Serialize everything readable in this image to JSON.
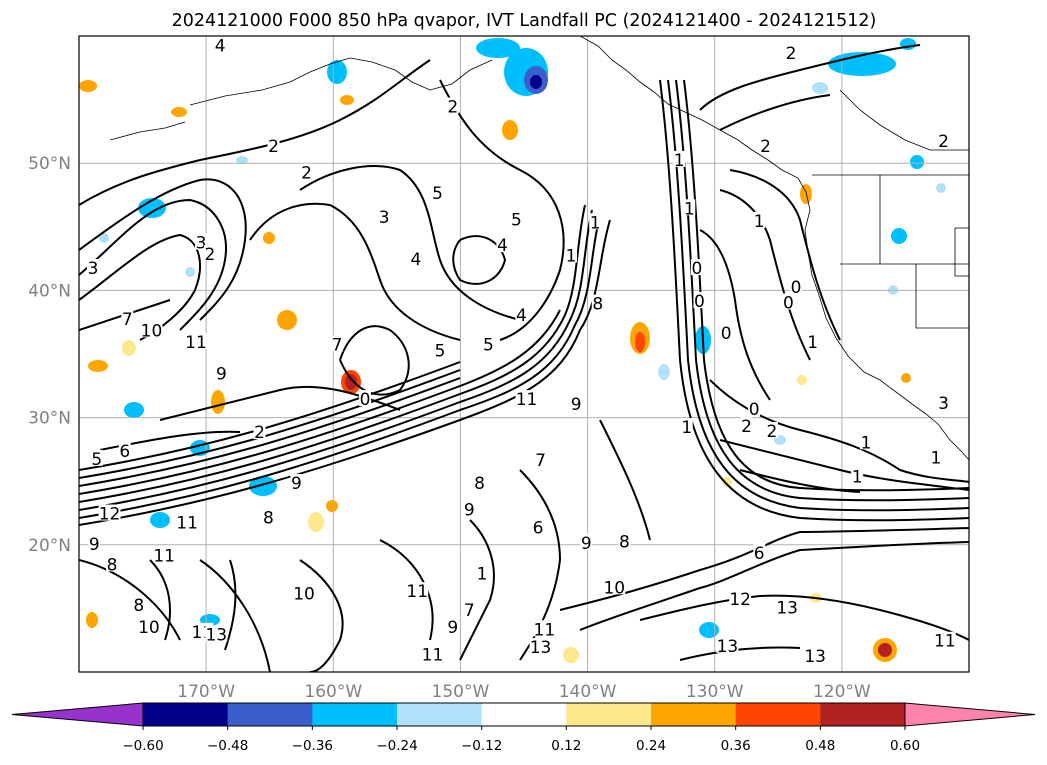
{
  "chart_data": {
    "type": "heatmap",
    "title": "2024121000 F000 850 hPa qvapor, IVT Landfall PC (2024121400 - 2024121512)",
    "xlabel": "",
    "ylabel": "",
    "xlim": [
      -180,
      -110
    ],
    "ylim": [
      10,
      60
    ],
    "x_ticks": [
      -170,
      -160,
      -150,
      -140,
      -130,
      -120
    ],
    "x_tick_labels": [
      "170°W",
      "160°W",
      "150°W",
      "140°W",
      "130°W",
      "120°W"
    ],
    "y_ticks": [
      20,
      30,
      40,
      50
    ],
    "y_tick_labels": [
      "20°N",
      "30°N",
      "40°N",
      "50°N"
    ],
    "grid": true,
    "shading_variable": "IVT Landfall PC",
    "contour_variable": "850 hPa qvapor",
    "colorbar": {
      "orientation": "horizontal",
      "extend": "both",
      "boundaries": [
        -0.6,
        -0.48,
        -0.36,
        -0.24,
        -0.12,
        0.12,
        0.24,
        0.36,
        0.48,
        0.6
      ],
      "tick_labels": [
        "−0.60",
        "−0.48",
        "−0.36",
        "−0.24",
        "−0.12",
        "0.12",
        "0.24",
        "0.36",
        "0.48",
        "0.60"
      ],
      "colors": [
        "#9932cc",
        "#00008b",
        "#3a5fcd",
        "#00bfff",
        "#afe1fa",
        "#ffffff",
        "#fde88c",
        "#ffa500",
        "#ff4500",
        "#b22222",
        "#ff82ab"
      ]
    },
    "contour_labels": [
      {
        "text": "4",
        "lon": -168.9,
        "lat": 59.1
      },
      {
        "text": "2",
        "lon": -164.7,
        "lat": 51.2
      },
      {
        "text": "2",
        "lon": -162.1,
        "lat": 49.1
      },
      {
        "text": "5",
        "lon": -151.8,
        "lat": 47.5
      },
      {
        "text": "3",
        "lon": -156.0,
        "lat": 45.6
      },
      {
        "text": "4",
        "lon": -153.5,
        "lat": 42.3
      },
      {
        "text": "4",
        "lon": -146.7,
        "lat": 43.4
      },
      {
        "text": "5",
        "lon": -145.6,
        "lat": 45.4
      },
      {
        "text": "4",
        "lon": -145.2,
        "lat": 37.9
      },
      {
        "text": "5",
        "lon": -147.8,
        "lat": 35.6
      },
      {
        "text": "5",
        "lon": -151.6,
        "lat": 35.1
      },
      {
        "text": "7",
        "lon": -159.7,
        "lat": 35.6
      },
      {
        "text": "0",
        "lon": -157.5,
        "lat": 31.3
      },
      {
        "text": "3",
        "lon": -170.4,
        "lat": 43.6
      },
      {
        "text": "2",
        "lon": -169.7,
        "lat": 42.7
      },
      {
        "text": "3",
        "lon": -178.9,
        "lat": 41.6
      },
      {
        "text": "7",
        "lon": -176.2,
        "lat": 37.6
      },
      {
        "text": "10",
        "lon": -174.3,
        "lat": 36.7
      },
      {
        "text": "11",
        "lon": -170.8,
        "lat": 35.8
      },
      {
        "text": "9",
        "lon": -168.8,
        "lat": 33.3
      },
      {
        "text": "2",
        "lon": -165.8,
        "lat": 28.7
      },
      {
        "text": "6",
        "lon": -176.4,
        "lat": 27.2
      },
      {
        "text": "5",
        "lon": -178.6,
        "lat": 26.6
      },
      {
        "text": "9",
        "lon": -162.9,
        "lat": 24.7
      },
      {
        "text": "8",
        "lon": -165.1,
        "lat": 22.0
      },
      {
        "text": "10",
        "lon": -162.3,
        "lat": 16.0
      },
      {
        "text": "11",
        "lon": -153.4,
        "lat": 16.2
      },
      {
        "text": "8",
        "lon": -148.5,
        "lat": 24.7
      },
      {
        "text": "9",
        "lon": -149.3,
        "lat": 22.6
      },
      {
        "text": "7",
        "lon": -143.7,
        "lat": 26.5
      },
      {
        "text": "6",
        "lon": -143.9,
        "lat": 21.2
      },
      {
        "text": "9",
        "lon": -140.1,
        "lat": 20.0
      },
      {
        "text": "8",
        "lon": -137.1,
        "lat": 20.1
      },
      {
        "text": "10",
        "lon": -137.9,
        "lat": 16.5
      },
      {
        "text": "1",
        "lon": -148.3,
        "lat": 17.6
      },
      {
        "text": "7",
        "lon": -149.3,
        "lat": 14.7
      },
      {
        "text": "9",
        "lon": -150.6,
        "lat": 13.4
      },
      {
        "text": "11",
        "lon": -143.4,
        "lat": 13.2
      },
      {
        "text": "13",
        "lon": -143.7,
        "lat": 11.8
      },
      {
        "text": "11",
        "lon": -152.2,
        "lat": 11.2
      },
      {
        "text": "11",
        "lon": -170.3,
        "lat": 13.0
      },
      {
        "text": "13",
        "lon": -169.2,
        "lat": 12.8
      },
      {
        "text": "10",
        "lon": -174.5,
        "lat": 13.4
      },
      {
        "text": "8",
        "lon": -175.3,
        "lat": 15.1
      },
      {
        "text": "8",
        "lon": -177.4,
        "lat": 18.3
      },
      {
        "text": "9",
        "lon": -178.8,
        "lat": 19.9
      },
      {
        "text": "11",
        "lon": -173.3,
        "lat": 19.0
      },
      {
        "text": "11",
        "lon": -171.5,
        "lat": 21.6
      },
      {
        "text": "12",
        "lon": -177.6,
        "lat": 22.3
      },
      {
        "text": "11",
        "lon": -144.8,
        "lat": 31.3
      },
      {
        "text": "9",
        "lon": -140.9,
        "lat": 30.9
      },
      {
        "text": "8",
        "lon": -139.2,
        "lat": 38.8
      },
      {
        "text": "1",
        "lon": -141.3,
        "lat": 42.6
      },
      {
        "text": "1",
        "lon": -139.4,
        "lat": 45.2
      },
      {
        "text": "0",
        "lon": -131.4,
        "lat": 41.6
      },
      {
        "text": "0",
        "lon": -131.2,
        "lat": 39.0
      },
      {
        "text": "0",
        "lon": -129.1,
        "lat": 36.5
      },
      {
        "text": "0",
        "lon": -124.2,
        "lat": 38.9
      },
      {
        "text": "0",
        "lon": -123.6,
        "lat": 40.1
      },
      {
        "text": "1",
        "lon": -122.3,
        "lat": 35.8
      },
      {
        "text": "1",
        "lon": -132.0,
        "lat": 46.3
      },
      {
        "text": "2",
        "lon": -126.0,
        "lat": 51.2
      },
      {
        "text": "1",
        "lon": -126.5,
        "lat": 45.3
      },
      {
        "text": "0",
        "lon": -126.9,
        "lat": 30.5
      },
      {
        "text": "2",
        "lon": -127.5,
        "lat": 29.2
      },
      {
        "text": "2",
        "lon": -125.5,
        "lat": 28.8
      },
      {
        "text": "1",
        "lon": -132.2,
        "lat": 29.1
      },
      {
        "text": "1",
        "lon": -118.1,
        "lat": 27.9
      },
      {
        "text": "1",
        "lon": -118.8,
        "lat": 25.2
      },
      {
        "text": "1",
        "lon": -112.6,
        "lat": 26.7
      },
      {
        "text": "3",
        "lon": -112.0,
        "lat": 31.0
      },
      {
        "text": "2",
        "lon": -112.0,
        "lat": 51.6
      },
      {
        "text": "2",
        "lon": -124.0,
        "lat": 58.5
      },
      {
        "text": "6",
        "lon": -126.5,
        "lat": 19.2
      },
      {
        "text": "12",
        "lon": -128.0,
        "lat": 15.6
      },
      {
        "text": "13",
        "lon": -124.3,
        "lat": 14.9
      },
      {
        "text": "13",
        "lon": -129.0,
        "lat": 11.9
      },
      {
        "text": "13",
        "lon": -122.1,
        "lat": 11.1
      },
      {
        "text": "11",
        "lon": -111.9,
        "lat": 12.3
      },
      {
        "text": "2",
        "lon": -150.6,
        "lat": 54.3
      },
      {
        "text": "1",
        "lon": -132.8,
        "lat": 50.1
      }
    ]
  }
}
